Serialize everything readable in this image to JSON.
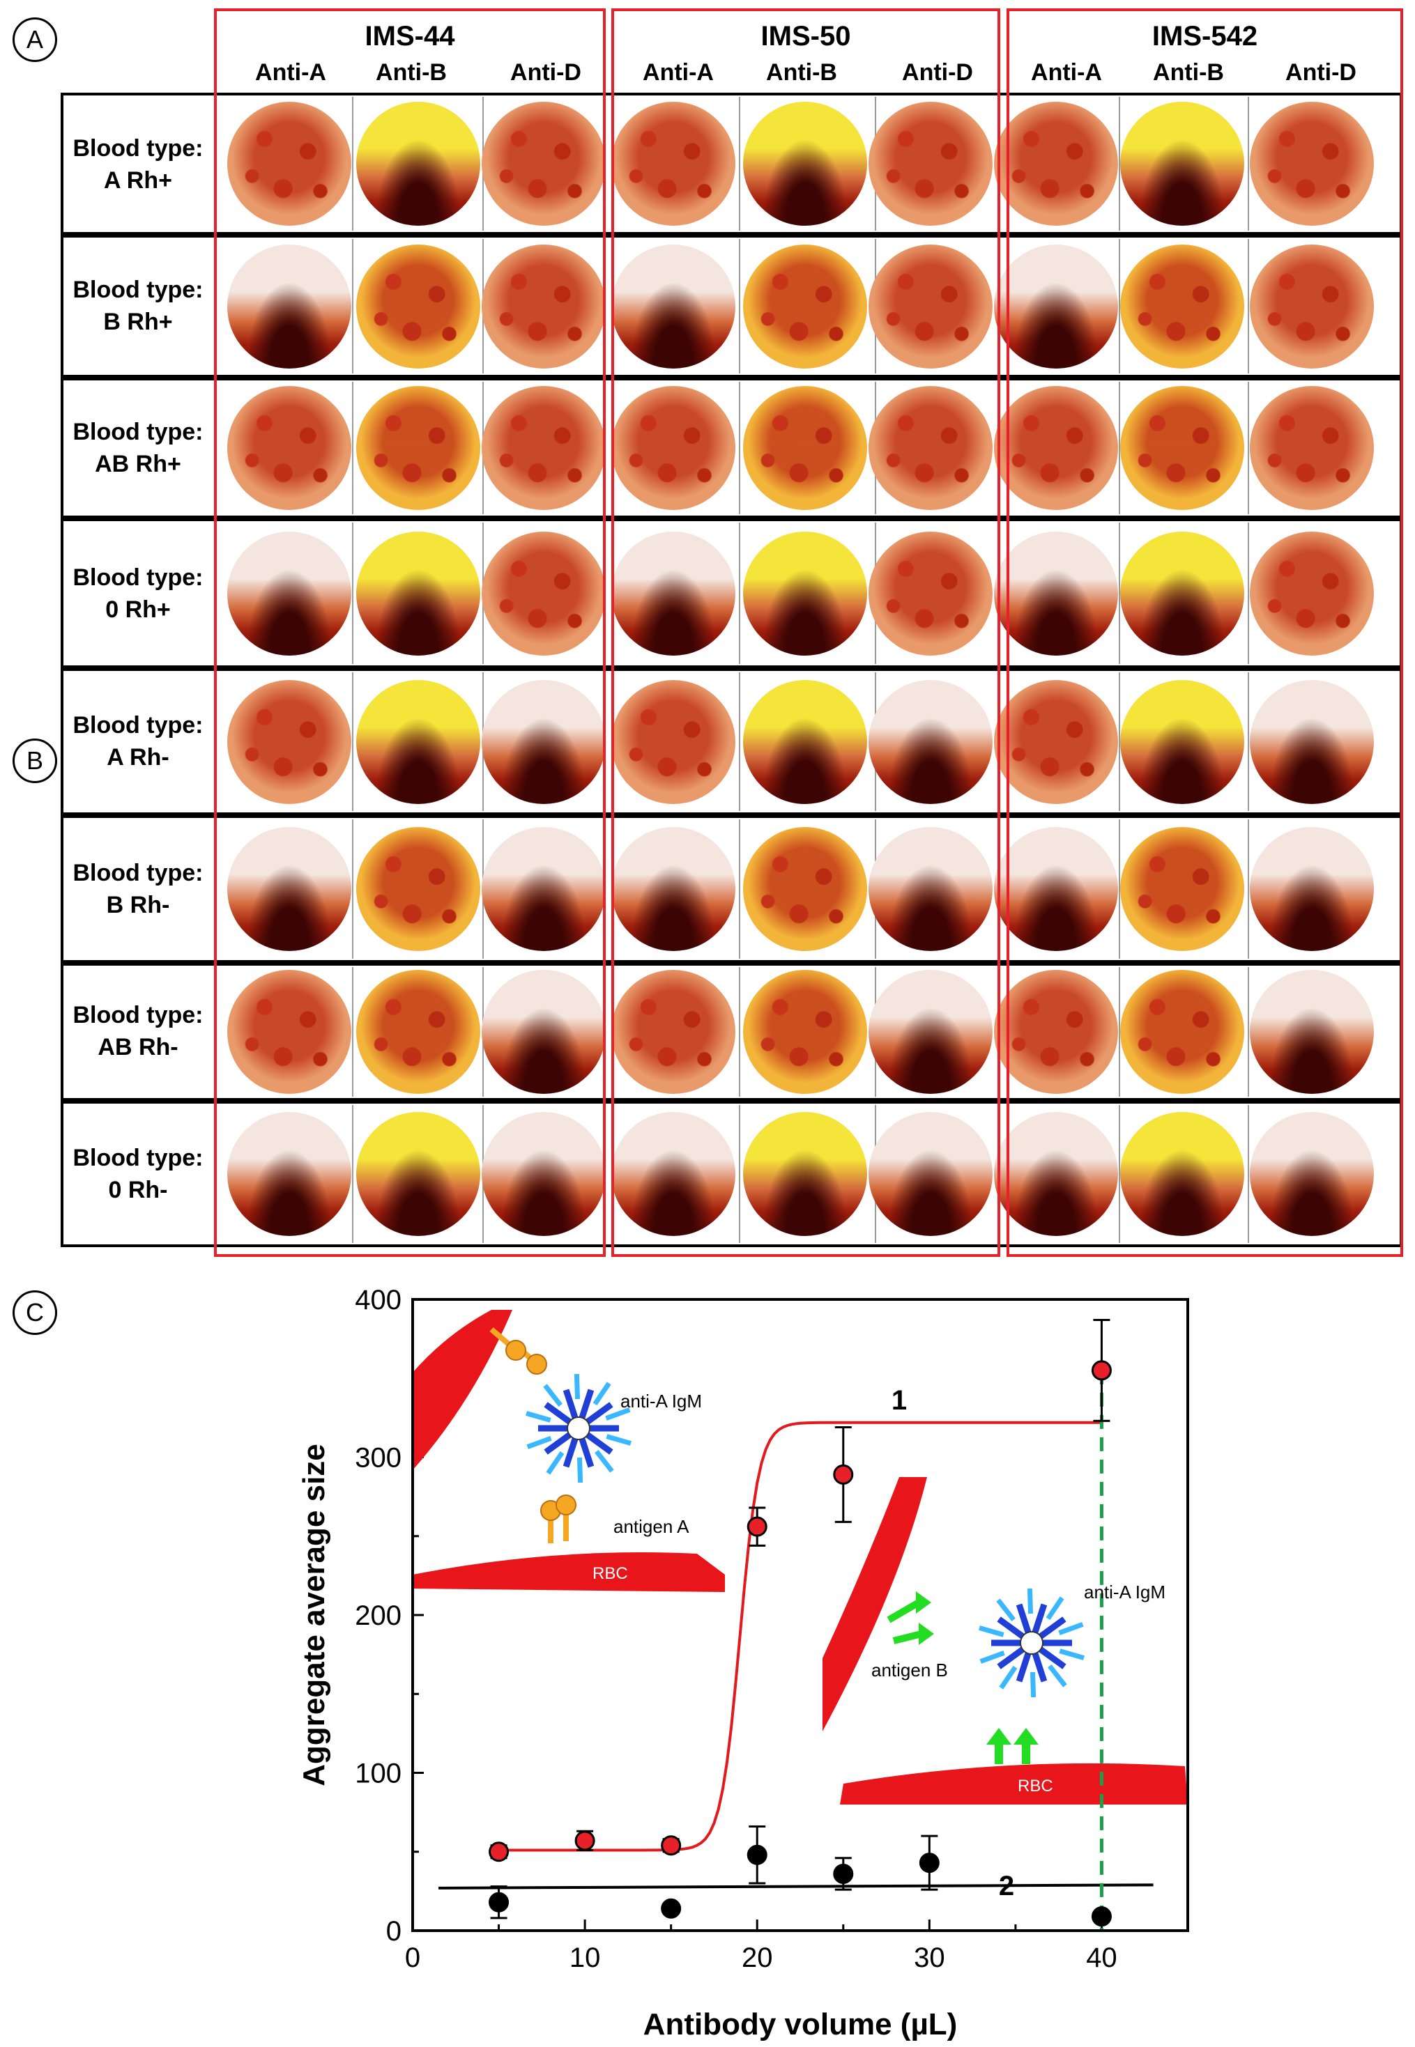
{
  "panels": {
    "a": "A",
    "b": "B",
    "c": "C"
  },
  "groups": [
    {
      "name": "IMS-44",
      "columns": [
        "Anti-A",
        "Anti-B",
        "Anti-D"
      ]
    },
    {
      "name": "IMS-50",
      "columns": [
        "Anti-A",
        "Anti-B",
        "Anti-D"
      ]
    },
    {
      "name": "IMS-542",
      "columns": [
        "Anti-A",
        "Anti-B",
        "Anti-D"
      ]
    }
  ],
  "rows": [
    {
      "line1": "Blood type:",
      "line2": "A Rh+"
    },
    {
      "line1": "Blood type:",
      "line2": "B Rh+"
    },
    {
      "line1": "Blood type:",
      "line2": "AB Rh+"
    },
    {
      "line1": "Blood type:",
      "line2": "0 Rh+"
    },
    {
      "line1": "Blood type:",
      "line2": "A Rh-"
    },
    {
      "line1": "Blood type:",
      "line2": "B Rh-"
    },
    {
      "line1": "Blood type:",
      "line2": "AB Rh-"
    },
    {
      "line1": "Blood type:",
      "line2": "0 Rh-"
    }
  ],
  "agglutination": [
    [
      "agg",
      "settle",
      "agg",
      "agg",
      "settle",
      "agg",
      "agg",
      "settle",
      "agg"
    ],
    [
      "settle",
      "agg",
      "agg",
      "settle",
      "agg",
      "agg",
      "settle",
      "agg",
      "agg"
    ],
    [
      "agg",
      "agg",
      "agg",
      "agg",
      "agg",
      "agg",
      "agg",
      "agg",
      "agg"
    ],
    [
      "settle",
      "settle",
      "agg",
      "settle",
      "settle",
      "agg",
      "settle",
      "settle",
      "agg"
    ],
    [
      "agg",
      "settle",
      "settle",
      "agg",
      "settle",
      "settle",
      "agg",
      "settle",
      "settle"
    ],
    [
      "settle",
      "agg",
      "settle",
      "settle",
      "agg",
      "settle",
      "settle",
      "agg",
      "settle"
    ],
    [
      "agg",
      "agg",
      "settle",
      "agg",
      "agg",
      "settle",
      "agg",
      "agg",
      "settle"
    ],
    [
      "settle",
      "settle",
      "settle",
      "settle",
      "settle",
      "settle",
      "settle",
      "settle",
      "settle"
    ]
  ],
  "colors": {
    "group_border": "#e8202a",
    "fit_line": "#e31a1c",
    "series1_fill": "#e8202a",
    "series2_fill": "#000000",
    "rbc": "#e8151b",
    "dashed": "#1aa04a",
    "antigen_a": "#f5a623",
    "antigen_b": "#22dd22",
    "igm_dark": "#1f3fd6",
    "igm_light": "#3ab8ff"
  },
  "chart_data": {
    "type": "scatter",
    "xlabel": "Antibody volume (µL)",
    "ylabel": "Aggregate average size",
    "xlim": [
      0,
      45
    ],
    "ylim": [
      0,
      400
    ],
    "xticks": [
      0,
      10,
      20,
      30,
      40
    ],
    "yticks": [
      0,
      100,
      200,
      300,
      400
    ],
    "series": [
      {
        "name": "1",
        "x": [
          5,
          10,
          15,
          20,
          25,
          40
        ],
        "y": [
          50,
          57,
          54,
          256,
          289,
          355
        ],
        "err": [
          4,
          6,
          4,
          12,
          30,
          32
        ],
        "fit": {
          "kind": "sigmoid",
          "low": 51,
          "high": 322,
          "x0": 19,
          "k": 1.8
        }
      },
      {
        "name": "2",
        "x": [
          5,
          15,
          20,
          25,
          30,
          40
        ],
        "y": [
          18,
          14,
          48,
          36,
          43,
          9
        ],
        "err": [
          10,
          0,
          18,
          10,
          17,
          0
        ],
        "fit": {
          "kind": "linear",
          "x1": 1.5,
          "y1": 27,
          "x2": 43,
          "y2": 29
        }
      }
    ],
    "vline_x": 40,
    "annotations": {
      "label1": "1",
      "label2": "2",
      "inset1_antibody": "anti-A IgM",
      "inset1_antigen": "antigen A",
      "inset1_cell": "RBC",
      "inset2_antibody": "anti-A IgM",
      "inset2_antigen": "antigen B",
      "inset2_cell": "RBC"
    }
  }
}
